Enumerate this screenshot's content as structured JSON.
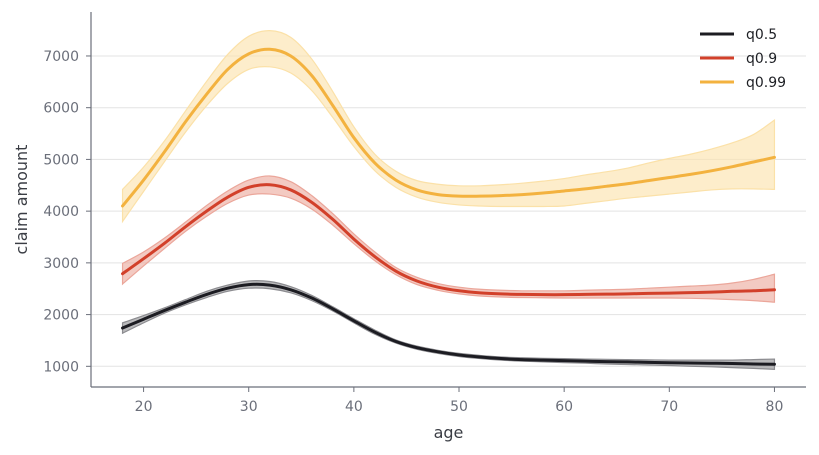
{
  "chart_data": {
    "type": "line",
    "xlabel": "age",
    "ylabel": "claim amount",
    "xlim": [
      15,
      83
    ],
    "ylim": [
      600,
      7850
    ],
    "x_ticks": [
      20,
      30,
      40,
      50,
      60,
      70,
      80
    ],
    "y_ticks": [
      1000,
      2000,
      3000,
      4000,
      5000,
      6000,
      7000
    ],
    "grid": "horizontal",
    "legend_position": "top-right",
    "x": [
      18,
      20,
      22,
      24,
      26,
      28,
      30,
      32,
      34,
      36,
      38,
      40,
      42,
      44,
      46,
      48,
      50,
      52,
      54,
      56,
      58,
      60,
      62,
      64,
      66,
      68,
      70,
      72,
      74,
      76,
      78,
      80
    ],
    "series": [
      {
        "name": "q0.5",
        "color": "#1c1c22",
        "band_color": "#8c8c90",
        "values": [
          1740,
          1910,
          2080,
          2240,
          2390,
          2510,
          2580,
          2570,
          2480,
          2320,
          2110,
          1880,
          1660,
          1480,
          1360,
          1280,
          1220,
          1180,
          1150,
          1130,
          1120,
          1110,
          1100,
          1090,
          1085,
          1075,
          1070,
          1065,
          1060,
          1055,
          1045,
          1040
        ],
        "lower": [
          1640,
          1840,
          2030,
          2190,
          2330,
          2450,
          2510,
          2500,
          2420,
          2270,
          2070,
          1840,
          1620,
          1450,
          1330,
          1250,
          1190,
          1150,
          1120,
          1100,
          1085,
          1070,
          1060,
          1045,
          1035,
          1025,
          1015,
          1000,
          990,
          975,
          960,
          940
        ],
        "upper": [
          1840,
          1980,
          2130,
          2290,
          2450,
          2570,
          2650,
          2640,
          2540,
          2370,
          2150,
          1920,
          1700,
          1510,
          1390,
          1310,
          1250,
          1210,
          1180,
          1165,
          1155,
          1150,
          1140,
          1135,
          1130,
          1125,
          1120,
          1120,
          1120,
          1120,
          1130,
          1140
        ]
      },
      {
        "name": "q0.9",
        "color": "#d2402a",
        "band_color": "#eba69a",
        "values": [
          2790,
          3080,
          3380,
          3700,
          4000,
          4270,
          4460,
          4510,
          4410,
          4170,
          3840,
          3460,
          3120,
          2840,
          2650,
          2530,
          2460,
          2420,
          2400,
          2390,
          2385,
          2385,
          2390,
          2395,
          2400,
          2410,
          2415,
          2425,
          2435,
          2450,
          2460,
          2480
        ],
        "lower": [
          2590,
          2940,
          3280,
          3610,
          3900,
          4150,
          4310,
          4330,
          4250,
          4040,
          3730,
          3370,
          3040,
          2770,
          2580,
          2470,
          2400,
          2360,
          2340,
          2330,
          2325,
          2320,
          2320,
          2320,
          2320,
          2320,
          2320,
          2315,
          2305,
          2290,
          2270,
          2240
        ],
        "upper": [
          2990,
          3210,
          3480,
          3790,
          4110,
          4390,
          4600,
          4680,
          4570,
          4300,
          3950,
          3560,
          3210,
          2910,
          2720,
          2600,
          2530,
          2490,
          2470,
          2460,
          2460,
          2460,
          2470,
          2480,
          2490,
          2510,
          2530,
          2550,
          2570,
          2610,
          2680,
          2780
        ]
      },
      {
        "name": "q0.99",
        "color": "#f3b23f",
        "band_color": "#fbe1a8",
        "values": [
          4100,
          4600,
          5150,
          5730,
          6260,
          6740,
          7040,
          7130,
          7000,
          6620,
          6040,
          5420,
          4930,
          4600,
          4410,
          4320,
          4290,
          4290,
          4300,
          4320,
          4350,
          4390,
          4430,
          4480,
          4530,
          4590,
          4650,
          4710,
          4780,
          4860,
          4950,
          5040
        ],
        "lower": [
          3800,
          4380,
          4960,
          5530,
          6040,
          6470,
          6740,
          6790,
          6670,
          6330,
          5810,
          5250,
          4780,
          4460,
          4270,
          4170,
          4120,
          4100,
          4090,
          4090,
          4090,
          4100,
          4150,
          4200,
          4250,
          4290,
          4330,
          4370,
          4410,
          4430,
          4430,
          4420
        ],
        "upper": [
          4420,
          4850,
          5360,
          5940,
          6510,
          7030,
          7380,
          7490,
          7360,
          6940,
          6310,
          5630,
          5100,
          4770,
          4590,
          4520,
          4490,
          4490,
          4510,
          4540,
          4580,
          4630,
          4700,
          4760,
          4830,
          4930,
          5020,
          5100,
          5200,
          5320,
          5480,
          5760
        ]
      }
    ]
  }
}
